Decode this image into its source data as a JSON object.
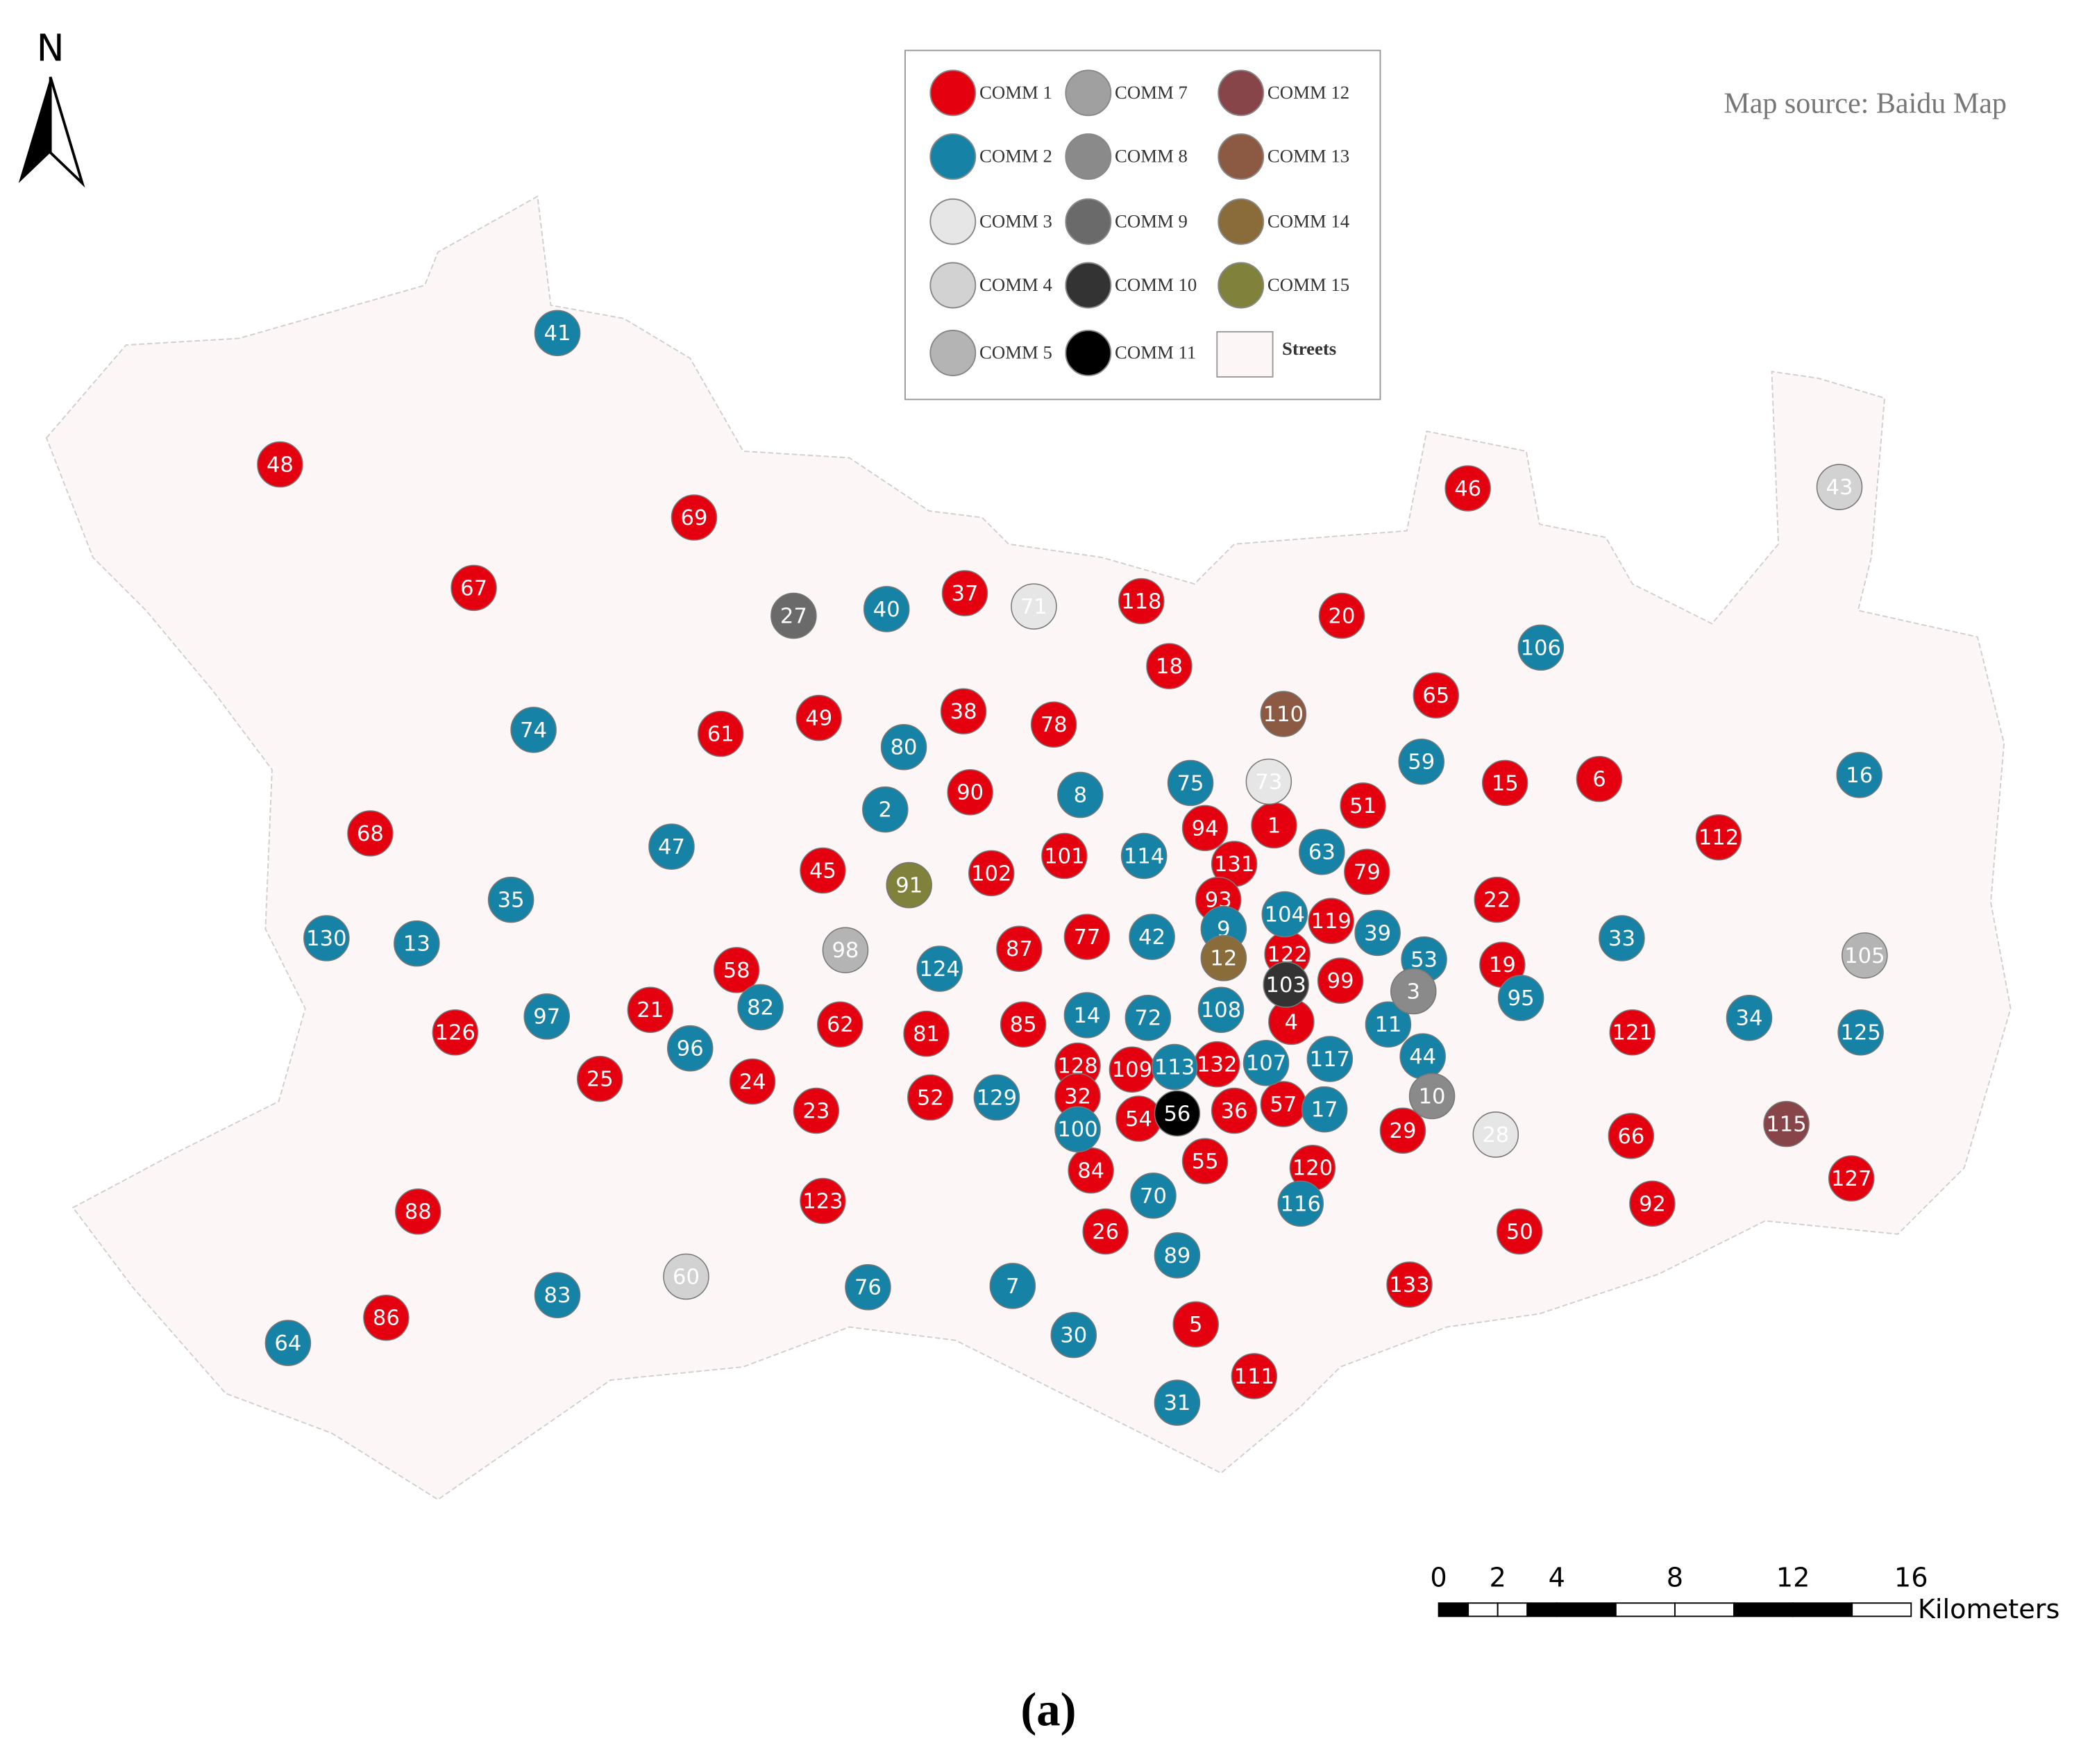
{
  "north": "N",
  "source": "Map source: Baidu Map",
  "caption": "(a)",
  "legend": [
    {
      "name": "COMM 1",
      "color": "#e50010"
    },
    {
      "name": "COMM 2",
      "color": "#1683a6"
    },
    {
      "name": "COMM 3",
      "color": "#e6e6e6"
    },
    {
      "name": "COMM 4",
      "color": "#d2d2d2"
    },
    {
      "name": "COMM 5",
      "color": "#b4b4b4"
    },
    {
      "name": "COMM 7",
      "color": "#a0a0a0"
    },
    {
      "name": "COMM 8",
      "color": "#8a8a8a"
    },
    {
      "name": "COMM 9",
      "color": "#6a6a6a"
    },
    {
      "name": "COMM 10",
      "color": "#333333"
    },
    {
      "name": "COMM 11",
      "color": "#000000"
    },
    {
      "name": "COMM 12",
      "color": "#87454a"
    },
    {
      "name": "COMM 13",
      "color": "#8c5a42"
    },
    {
      "name": "COMM 14",
      "color": "#8a6b3a"
    },
    {
      "name": "COMM 15",
      "color": "#80823c"
    },
    {
      "name": "Streets",
      "color": "#fdf6f6"
    }
  ],
  "scale_bar": {
    "ticks": [
      0,
      2,
      4,
      8,
      12,
      16
    ],
    "unit": "Kilometers"
  },
  "nodes": [
    {
      "label": "48",
      "color": "#e50010"
    },
    {
      "label": "69",
      "color": "#e50010"
    },
    {
      "label": "67",
      "color": "#e50010"
    },
    {
      "label": "37",
      "color": "#e50010"
    },
    {
      "label": "118",
      "color": "#e50010"
    },
    {
      "label": "20",
      "color": "#e50010"
    },
    {
      "label": "46",
      "color": "#e50010"
    },
    {
      "label": "18",
      "color": "#e50010"
    },
    {
      "label": "65",
      "color": "#e50010"
    },
    {
      "label": "61",
      "color": "#e50010"
    },
    {
      "label": "49",
      "color": "#e50010"
    },
    {
      "label": "38",
      "color": "#e50010"
    },
    {
      "label": "78",
      "color": "#e50010"
    },
    {
      "label": "90",
      "color": "#e50010"
    },
    {
      "label": "15",
      "color": "#e50010"
    },
    {
      "label": "6",
      "color": "#e50010"
    },
    {
      "label": "51",
      "color": "#e50010"
    },
    {
      "label": "94",
      "color": "#e50010"
    },
    {
      "label": "1",
      "color": "#e50010"
    },
    {
      "label": "112",
      "color": "#e50010"
    },
    {
      "label": "68",
      "color": "#e50010"
    },
    {
      "label": "45",
      "color": "#e50010"
    },
    {
      "label": "102",
      "color": "#e50010"
    },
    {
      "label": "101",
      "color": "#e50010"
    },
    {
      "label": "131",
      "color": "#e50010"
    },
    {
      "label": "79",
      "color": "#e50010"
    },
    {
      "label": "93",
      "color": "#e50010"
    },
    {
      "label": "22",
      "color": "#e50010"
    },
    {
      "label": "119",
      "color": "#e50010"
    },
    {
      "label": "58",
      "color": "#e50010"
    },
    {
      "label": "87",
      "color": "#e50010"
    },
    {
      "label": "77",
      "color": "#e50010"
    },
    {
      "label": "122",
      "color": "#e50010"
    },
    {
      "label": "19",
      "color": "#e50010"
    },
    {
      "label": "99",
      "color": "#e50010"
    },
    {
      "label": "21",
      "color": "#e50010"
    },
    {
      "label": "126",
      "color": "#e50010"
    },
    {
      "label": "62",
      "color": "#e50010"
    },
    {
      "label": "81",
      "color": "#e50010"
    },
    {
      "label": "85",
      "color": "#e50010"
    },
    {
      "label": "4",
      "color": "#e50010"
    },
    {
      "label": "121",
      "color": "#e50010"
    },
    {
      "label": "25",
      "color": "#e50010"
    },
    {
      "label": "24",
      "color": "#e50010"
    },
    {
      "label": "23",
      "color": "#e50010"
    },
    {
      "label": "52",
      "color": "#e50010"
    },
    {
      "label": "128",
      "color": "#e50010"
    },
    {
      "label": "109",
      "color": "#e50010"
    },
    {
      "label": "132",
      "color": "#e50010"
    },
    {
      "label": "32",
      "color": "#e50010"
    },
    {
      "label": "54",
      "color": "#e50010"
    },
    {
      "label": "36",
      "color": "#e50010"
    },
    {
      "label": "57",
      "color": "#e50010"
    },
    {
      "label": "29",
      "color": "#e50010"
    },
    {
      "label": "66",
      "color": "#e50010"
    },
    {
      "label": "55",
      "color": "#e50010"
    },
    {
      "label": "120",
      "color": "#e50010"
    },
    {
      "label": "84",
      "color": "#e50010"
    },
    {
      "label": "127",
      "color": "#e50010"
    },
    {
      "label": "88",
      "color": "#e50010"
    },
    {
      "label": "123",
      "color": "#e50010"
    },
    {
      "label": "92",
      "color": "#e50010"
    },
    {
      "label": "26",
      "color": "#e50010"
    },
    {
      "label": "50",
      "color": "#e50010"
    },
    {
      "label": "133",
      "color": "#e50010"
    },
    {
      "label": "86",
      "color": "#e50010"
    },
    {
      "label": "5",
      "color": "#e50010"
    },
    {
      "label": "111",
      "color": "#e50010"
    },
    {
      "label": "41",
      "color": "#1683a6"
    },
    {
      "label": "40",
      "color": "#1683a6"
    },
    {
      "label": "106",
      "color": "#1683a6"
    },
    {
      "label": "74",
      "color": "#1683a6"
    },
    {
      "label": "80",
      "color": "#1683a6"
    },
    {
      "label": "59",
      "color": "#1683a6"
    },
    {
      "label": "75",
      "color": "#1683a6"
    },
    {
      "label": "16",
      "color": "#1683a6"
    },
    {
      "label": "2",
      "color": "#1683a6"
    },
    {
      "label": "8",
      "color": "#1683a6"
    },
    {
      "label": "47",
      "color": "#1683a6"
    },
    {
      "label": "114",
      "color": "#1683a6"
    },
    {
      "label": "63",
      "color": "#1683a6"
    },
    {
      "label": "35",
      "color": "#1683a6"
    },
    {
      "label": "130",
      "color": "#1683a6"
    },
    {
      "label": "13",
      "color": "#1683a6"
    },
    {
      "label": "104",
      "color": "#1683a6"
    },
    {
      "label": "39",
      "color": "#1683a6"
    },
    {
      "label": "9",
      "color": "#1683a6"
    },
    {
      "label": "124",
      "color": "#1683a6"
    },
    {
      "label": "42",
      "color": "#1683a6"
    },
    {
      "label": "53",
      "color": "#1683a6"
    },
    {
      "label": "33",
      "color": "#1683a6"
    },
    {
      "label": "95",
      "color": "#1683a6"
    },
    {
      "label": "97",
      "color": "#1683a6"
    },
    {
      "label": "82",
      "color": "#1683a6"
    },
    {
      "label": "96",
      "color": "#1683a6"
    },
    {
      "label": "14",
      "color": "#1683a6"
    },
    {
      "label": "72",
      "color": "#1683a6"
    },
    {
      "label": "108",
      "color": "#1683a6"
    },
    {
      "label": "11",
      "color": "#1683a6"
    },
    {
      "label": "34",
      "color": "#1683a6"
    },
    {
      "label": "125",
      "color": "#1683a6"
    },
    {
      "label": "44",
      "color": "#1683a6"
    },
    {
      "label": "107",
      "color": "#1683a6"
    },
    {
      "label": "117",
      "color": "#1683a6"
    },
    {
      "label": "113",
      "color": "#1683a6"
    },
    {
      "label": "129",
      "color": "#1683a6"
    },
    {
      "label": "17",
      "color": "#1683a6"
    },
    {
      "label": "100",
      "color": "#1683a6"
    },
    {
      "label": "70",
      "color": "#1683a6"
    },
    {
      "label": "116",
      "color": "#1683a6"
    },
    {
      "label": "89",
      "color": "#1683a6"
    },
    {
      "label": "76",
      "color": "#1683a6"
    },
    {
      "label": "7",
      "color": "#1683a6"
    },
    {
      "label": "83",
      "color": "#1683a6"
    },
    {
      "label": "30",
      "color": "#1683a6"
    },
    {
      "label": "64",
      "color": "#1683a6"
    },
    {
      "label": "31",
      "color": "#1683a6"
    },
    {
      "label": "27",
      "color": "#6a6a6a"
    },
    {
      "label": "71",
      "color": "#e6e6e6"
    },
    {
      "label": "73",
      "color": "#e6e6e6"
    },
    {
      "label": "43",
      "color": "#d2d2d2"
    },
    {
      "label": "110",
      "color": "#8c5a42"
    },
    {
      "label": "91",
      "color": "#80823c"
    },
    {
      "label": "98",
      "color": "#b4b4b4"
    },
    {
      "label": "12",
      "color": "#8a6b3a"
    },
    {
      "label": "103",
      "color": "#333333"
    },
    {
      "label": "3",
      "color": "#8a8a8a"
    },
    {
      "label": "105",
      "color": "#b4b4b4"
    },
    {
      "label": "10",
      "color": "#8a8a8a"
    },
    {
      "label": "28",
      "color": "#e6e6e6"
    },
    {
      "label": "115",
      "color": "#87454a"
    },
    {
      "label": "56",
      "color": "#000000"
    },
    {
      "label": "60",
      "color": "#d2d2d2"
    }
  ]
}
